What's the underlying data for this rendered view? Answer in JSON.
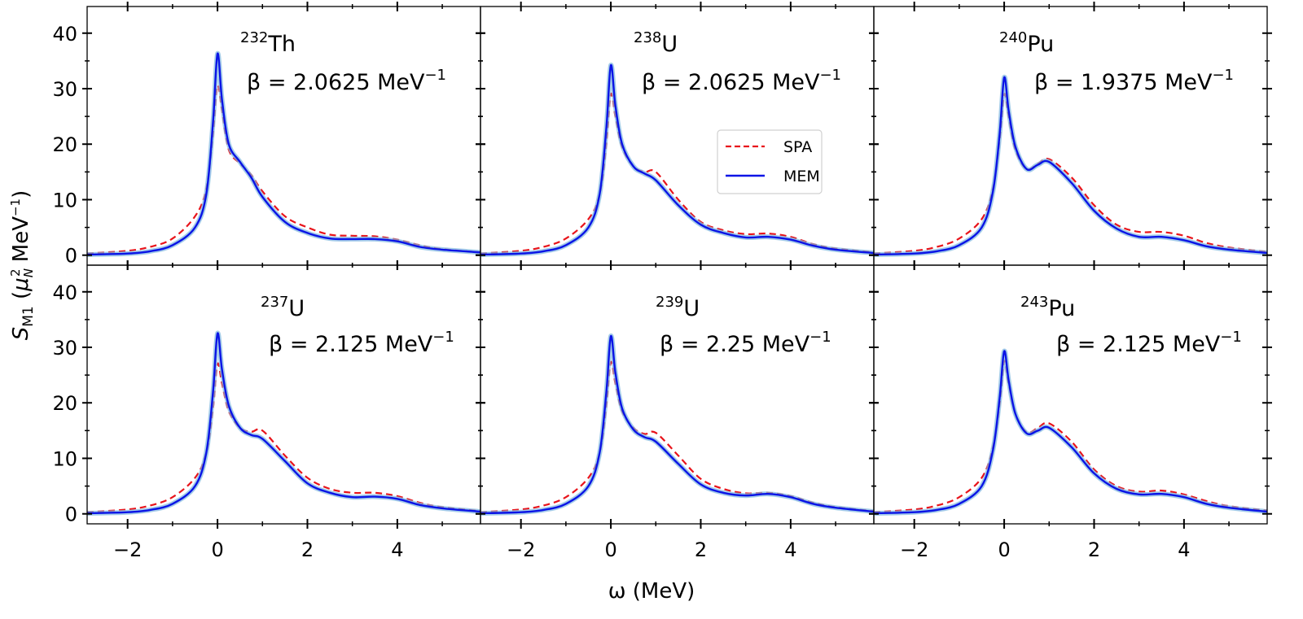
{
  "chart_data": {
    "type": "line",
    "layout": "2x3 grid, shared axes",
    "xlabel": "ω (MeV)",
    "ylabel": "S_M1 (μ_N^2 MeV^-1)",
    "ylabel_parts": {
      "main": "S",
      "sub": "M1",
      "open": " (",
      "mu": "μ",
      "mu_sub": "N",
      "mu_sup": "2",
      "unit": " MeV",
      "unit_sup": "−1",
      "close": ")"
    },
    "xlim": [
      -2.9,
      5.85
    ],
    "ylim": [
      -1.8,
      44.8
    ],
    "xticks": [
      -2,
      0,
      2,
      4
    ],
    "xtick_labels": [
      "−2",
      "0",
      "2",
      "4"
    ],
    "xminor": [
      -1,
      1,
      3,
      5
    ],
    "yticks": [
      0,
      10,
      20,
      30,
      40
    ],
    "ytick_labels": [
      "0",
      "10",
      "20",
      "30",
      "40"
    ],
    "yminor": [
      5,
      15,
      25,
      35
    ],
    "grid": false,
    "legend": {
      "placement": "inside top-middle panel",
      "entries": [
        {
          "name": "SPA",
          "color": "#e8141b",
          "style": "dashed"
        },
        {
          "name": "MEM",
          "color": "#0a14e6",
          "style": "solid"
        }
      ]
    },
    "colors": {
      "SPA": "#e8141b",
      "MEM": "#0a14e6",
      "MEM_band": "#7fb6e0"
    },
    "x": [
      -2.9,
      -2,
      -1.5,
      -1,
      -0.5,
      -0.25,
      -0.1,
      0,
      0.1,
      0.25,
      0.5,
      0.75,
      1,
      1.5,
      2,
      2.5,
      3,
      3.5,
      4,
      4.5,
      5,
      5.85
    ],
    "panels": [
      {
        "nucleus_mass": "232",
        "nucleus_symbol": "Th",
        "beta_label": "β = 2.0625 MeV",
        "beta_sup": "−1",
        "series": [
          {
            "name": "SPA",
            "values": [
              0.3,
              0.8,
              1.5,
              3.0,
              7.0,
              12.0,
              22.0,
              30.5,
              26.0,
              19.0,
              16.5,
              14.5,
              11.5,
              7.0,
              5.0,
              3.7,
              3.5,
              3.4,
              2.8,
              1.8,
              1.1,
              0.5
            ]
          },
          {
            "name": "MEM",
            "values": [
              0.1,
              0.3,
              0.7,
              1.8,
              5.0,
              11.0,
              24.0,
              36.3,
              28.0,
              20.0,
              16.8,
              14.0,
              10.5,
              6.0,
              4.0,
              3.0,
              2.9,
              2.9,
              2.5,
              1.5,
              1.0,
              0.5
            ]
          }
        ]
      },
      {
        "nucleus_mass": "238",
        "nucleus_symbol": "U",
        "beta_label": "β = 2.0625 MeV",
        "beta_sup": "−1",
        "series": [
          {
            "name": "SPA",
            "values": [
              0.3,
              0.8,
              1.5,
              3.0,
              6.5,
              11.0,
              20.0,
              29.0,
              25.0,
              19.5,
              16.0,
              15.0,
              15.0,
              10.0,
              6.0,
              4.5,
              3.8,
              3.9,
              3.3,
              2.0,
              1.2,
              0.5
            ]
          },
          {
            "name": "MEM",
            "values": [
              0.1,
              0.3,
              0.7,
              1.8,
              5.0,
              11.0,
              23.0,
              34.2,
              27.0,
              20.0,
              16.0,
              14.7,
              13.5,
              9.0,
              5.5,
              4.0,
              3.2,
              3.3,
              2.8,
              1.7,
              1.0,
              0.4
            ]
          }
        ]
      },
      {
        "nucleus_mass": "240",
        "nucleus_symbol": "Pu",
        "beta_label": "β = 1.9375 MeV",
        "beta_sup": "−1",
        "series": [
          {
            "name": "SPA",
            "values": [
              0.3,
              0.8,
              1.5,
              3.0,
              6.5,
              12.0,
              21.0,
              29.0,
              25.0,
              19.0,
              15.5,
              16.5,
              17.3,
              14.0,
              9.0,
              5.5,
              4.2,
              4.2,
              3.5,
              2.2,
              1.4,
              0.6
            ]
          },
          {
            "name": "MEM",
            "values": [
              0.1,
              0.3,
              0.7,
              1.8,
              5.0,
              11.5,
              22.0,
              32.0,
              26.0,
              19.5,
              15.5,
              16.3,
              16.8,
              13.0,
              8.0,
              4.8,
              3.3,
              3.3,
              2.7,
              1.6,
              1.0,
              0.4
            ]
          }
        ]
      },
      {
        "nucleus_mass": "237",
        "nucleus_symbol": "U",
        "beta_label": "β = 2.125 MeV",
        "beta_sup": "−1",
        "series": [
          {
            "name": "SPA",
            "values": [
              0.3,
              0.8,
              1.5,
              3.0,
              6.5,
              11.0,
              19.0,
              27.0,
              23.5,
              18.5,
              15.5,
              14.8,
              15.0,
              10.5,
              6.5,
              4.5,
              3.8,
              3.8,
              3.2,
              2.0,
              1.2,
              0.5
            ]
          },
          {
            "name": "MEM",
            "values": [
              0.1,
              0.3,
              0.7,
              1.8,
              5.0,
              11.0,
              22.0,
              32.5,
              26.0,
              19.5,
              15.5,
              14.2,
              13.5,
              9.5,
              5.5,
              3.8,
              3.0,
              3.1,
              2.7,
              1.6,
              1.0,
              0.4
            ]
          }
        ]
      },
      {
        "nucleus_mass": "239",
        "nucleus_symbol": "U",
        "beta_label": "β = 2.25 MeV",
        "beta_sup": "−1",
        "series": [
          {
            "name": "SPA",
            "values": [
              0.3,
              0.8,
              1.5,
              3.0,
              6.5,
              11.0,
              19.5,
              27.3,
              23.5,
              18.5,
              15.5,
              14.4,
              14.6,
              10.5,
              6.3,
              4.5,
              3.7,
              3.8,
              3.2,
              2.0,
              1.2,
              0.5
            ]
          },
          {
            "name": "MEM",
            "values": [
              0.1,
              0.3,
              0.7,
              1.8,
              5.0,
              11.0,
              22.0,
              32.0,
              25.5,
              19.0,
              15.2,
              13.8,
              13.0,
              9.0,
              5.3,
              3.8,
              3.3,
              3.6,
              3.0,
              1.8,
              1.1,
              0.4
            ]
          }
        ]
      },
      {
        "nucleus_mass": "243",
        "nucleus_symbol": "Pu",
        "beta_label": "β = 2.125 MeV",
        "beta_sup": "−1",
        "series": [
          {
            "name": "SPA",
            "values": [
              0.3,
              0.8,
              1.5,
              3.0,
              6.5,
              12.0,
              20.0,
              27.5,
              23.5,
              18.0,
              14.7,
              15.5,
              16.3,
              13.0,
              8.0,
              5.0,
              4.0,
              4.2,
              3.5,
              2.3,
              1.4,
              0.6
            ]
          },
          {
            "name": "MEM",
            "values": [
              0.1,
              0.3,
              0.7,
              1.8,
              5.0,
              11.5,
              21.0,
              29.3,
              24.0,
              18.0,
              14.5,
              15.0,
              15.5,
              12.0,
              7.3,
              4.5,
              3.5,
              3.6,
              3.0,
              1.8,
              1.1,
              0.4
            ]
          }
        ]
      }
    ]
  }
}
